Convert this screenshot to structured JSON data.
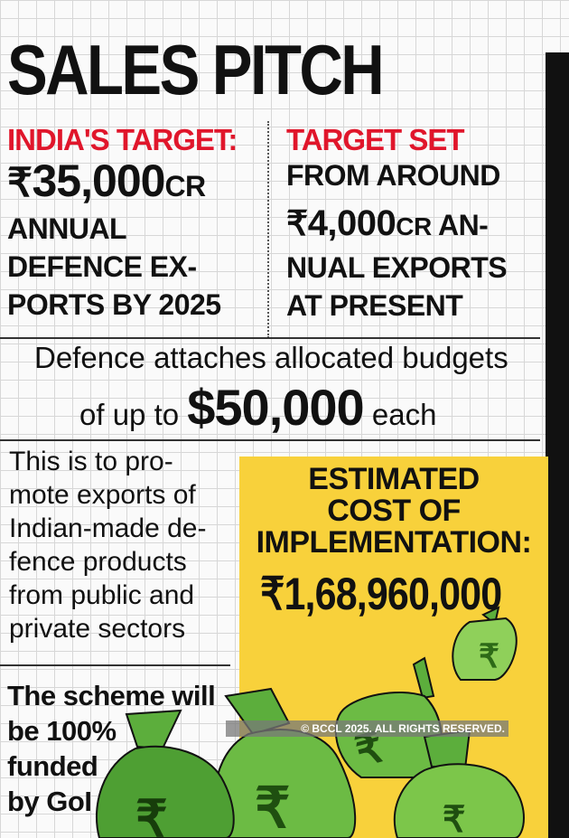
{
  "title": "SALES PITCH",
  "left_col": {
    "heading": "INDIA'S TARGET:",
    "rupee": "₹",
    "amount": "35,000",
    "unit": "CR",
    "lines": [
      "ANNUAL",
      "DEFENCE EX-",
      "PORTS BY 2025"
    ]
  },
  "right_col": {
    "heading": "TARGET SET",
    "line1": "FROM AROUND",
    "rupee": "₹",
    "amount": "4,000",
    "unit": "CR",
    "amount_suffix": " AN-",
    "lines": [
      "NUAL EXPORTS",
      "AT PRESENT"
    ]
  },
  "budget": {
    "line1": "Defence attaches allocated budgets",
    "prefix": "of up to ",
    "amount": "$50,000",
    "suffix": " each"
  },
  "promote_lines": [
    "This is to pro-",
    "mote exports of",
    "Indian-made de-",
    "fence products",
    "from public and",
    "private sectors"
  ],
  "funded_lines": [
    "The scheme will",
    "be 100%",
    "funded",
    "by GoI"
  ],
  "estimate": {
    "lines": [
      "ESTIMATED",
      "COST OF",
      "IMPLEMENTATION:"
    ],
    "cost": "₹1,68,960,000"
  },
  "copyright": "© BCCL 2025. ALL RIGHTS RESERVED.",
  "bag_symbol": "₹",
  "colors": {
    "red": "#e0162b",
    "yellow": "#f8d13b",
    "bag_green": "#5cae3c",
    "bag_light": "#8fd05a",
    "black": "#111111"
  }
}
